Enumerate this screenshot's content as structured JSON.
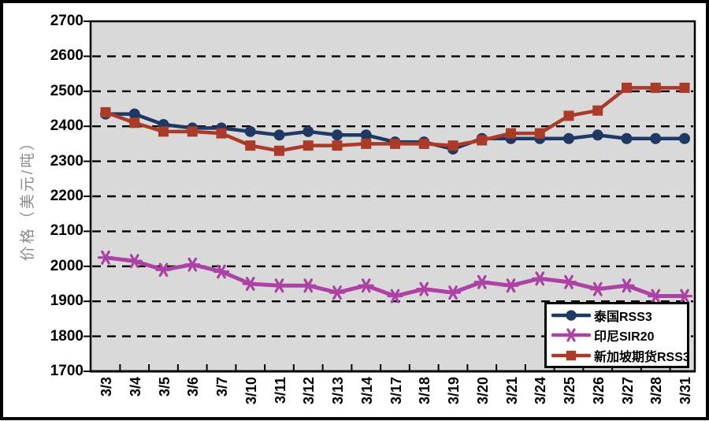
{
  "chart_data": {
    "type": "line",
    "title": "",
    "xlabel": "",
    "ylabel": "价格（美元/吨）",
    "ylim": [
      1700,
      2700
    ],
    "yticks": [
      1700,
      1800,
      1900,
      2000,
      2100,
      2200,
      2300,
      2400,
      2500,
      2600,
      2700
    ],
    "grid": "horizontal-dashed",
    "legend_position": "bottom-right-inside",
    "plot_bg": "#D9D9D9",
    "axis_color": "#000000",
    "ylabel_color": "#8A8A8A",
    "categories": [
      "3/3",
      "3/4",
      "3/5",
      "3/6",
      "3/7",
      "3/10",
      "3/11",
      "3/12",
      "3/13",
      "3/14",
      "3/17",
      "3/18",
      "3/19",
      "3/20",
      "3/21",
      "3/24",
      "3/25",
      "3/26",
      "3/27",
      "3/28",
      "3/31"
    ],
    "series": [
      {
        "name": "泰国RSS3",
        "color": "#1F3864",
        "marker": "circle",
        "values": [
          2435,
          2435,
          2405,
          2395,
          2395,
          2385,
          2375,
          2385,
          2375,
          2375,
          2355,
          2355,
          2335,
          2365,
          2365,
          2365,
          2365,
          2375,
          2365,
          2365,
          2365
        ]
      },
      {
        "name": "印尼SIR20",
        "color": "#AC42A4",
        "marker": "asterisk",
        "values": [
          2025,
          2015,
          1990,
          2005,
          1985,
          1950,
          1945,
          1945,
          1925,
          1945,
          1915,
          1935,
          1925,
          1955,
          1945,
          1965,
          1955,
          1935,
          1945,
          1915,
          1915
        ]
      },
      {
        "name": "新加坡期货RSS3",
        "color": "#A93B28",
        "marker": "square",
        "values": [
          2440,
          2410,
          2385,
          2385,
          2380,
          2345,
          2330,
          2345,
          2345,
          2350,
          2350,
          2350,
          2345,
          2360,
          2380,
          2380,
          2430,
          2445,
          2510,
          2510,
          2510
        ]
      }
    ]
  }
}
